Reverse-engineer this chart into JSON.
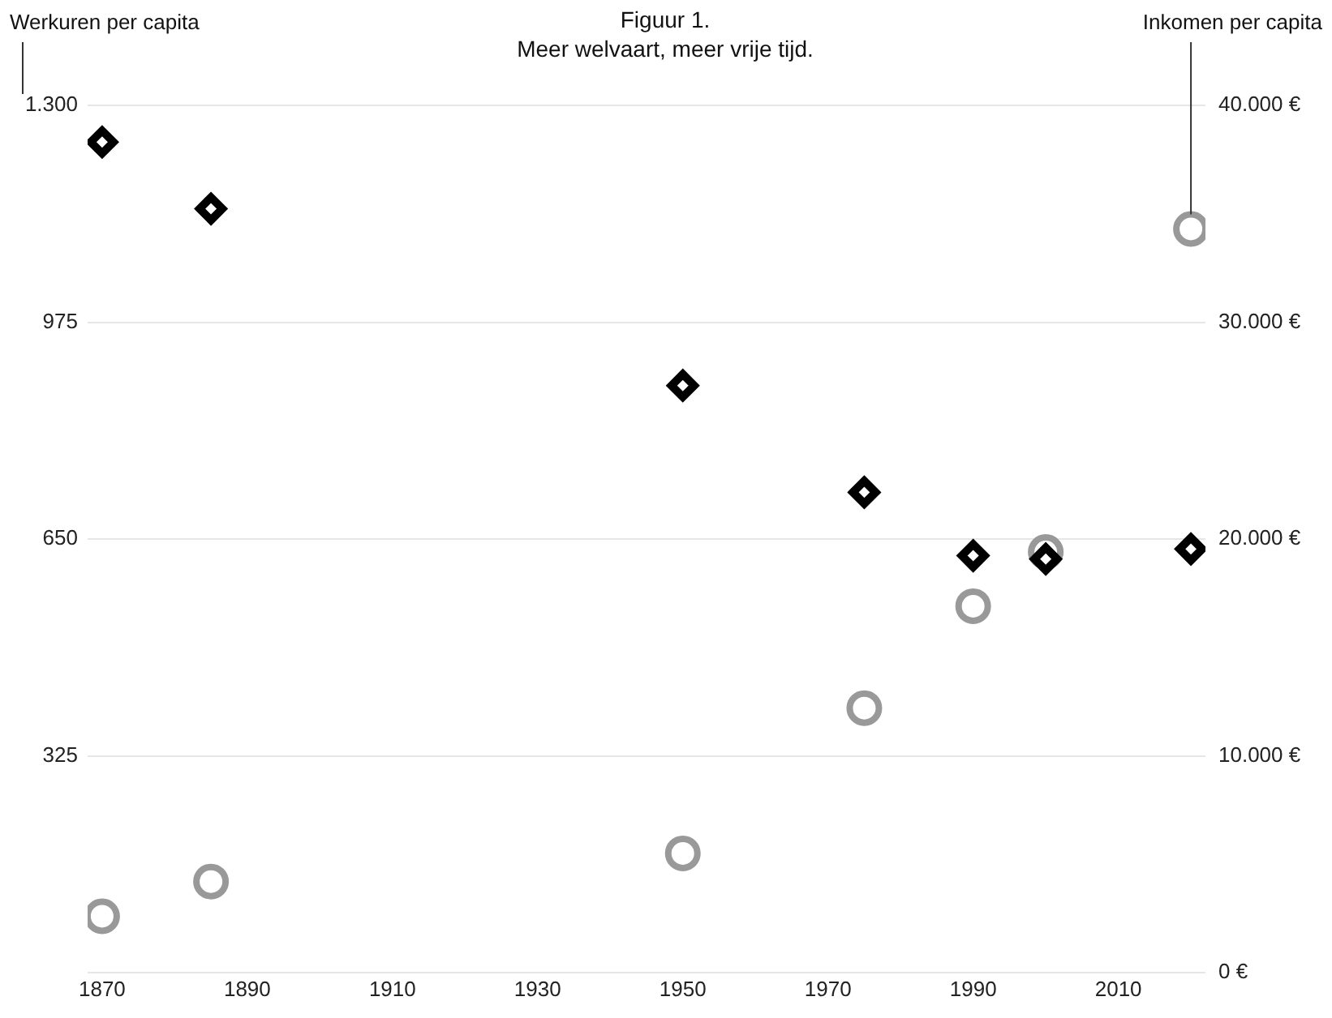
{
  "chart_data": {
    "type": "scatter",
    "title": "Figuur 1.",
    "subtitle": "Meer welvaart, meer vrije tijd.",
    "ylabel": "Werkuren per capita",
    "y2label": "Inkomen per capita",
    "x": [
      1870,
      1885,
      1950,
      1975,
      1990,
      2000,
      2020
    ],
    "series": [
      {
        "color": "#000000",
        "marker": "diamond",
        "values": [
          1245,
          1145,
          880,
          720,
          625,
          620,
          635
        ]
      },
      {
        "color": "#999999",
        "marker": "circle",
        "axis": "y2",
        "values": [
          2600,
          4200,
          5500,
          12200,
          16900,
          19400,
          34300
        ]
      }
    ],
    "xlim": [
      1868,
      2022
    ],
    "xticks": [
      1870,
      1890,
      1910,
      1930,
      1950,
      1970,
      1990,
      2010
    ],
    "ylim": [
      0,
      1300
    ],
    "yticks": [
      {
        "value": 0,
        "label": null
      },
      {
        "value": 325,
        "label": "325"
      },
      {
        "value": 650,
        "label": "650"
      },
      {
        "value": 975,
        "label": "975"
      },
      {
        "value": 1300,
        "label": "1.300"
      }
    ],
    "y2lim": [
      0,
      40000
    ],
    "y2ticks": [
      {
        "value": 0,
        "label": "0 €"
      },
      {
        "value": 10000,
        "label": "10.000 €"
      },
      {
        "value": 20000,
        "label": "20.000 €"
      },
      {
        "value": 30000,
        "label": "30.000 €"
      },
      {
        "value": 40000,
        "label": "40.000 €"
      }
    ],
    "grid": "y",
    "legend": false
  }
}
